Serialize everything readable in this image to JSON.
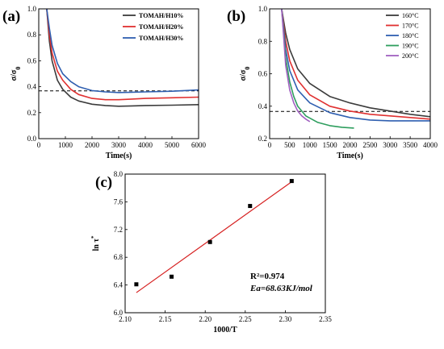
{
  "chart_data": [
    {
      "panel": "(a)",
      "type": "line",
      "xlabel": "Time(s)",
      "ylabel": "σ/σ0",
      "xlim": [
        0,
        6000
      ],
      "ylim": [
        0.0,
        1.0
      ],
      "xticks": [
        "0",
        "1000",
        "2000",
        "3000",
        "4000",
        "5000",
        "6000"
      ],
      "yticks": [
        "0.0",
        "0.2",
        "0.4",
        "0.6",
        "0.8",
        "1.0"
      ],
      "legend_position": "top-right",
      "reference_line": {
        "y": 0.368,
        "style": "dashed",
        "color": "#000000"
      },
      "series": [
        {
          "name": "TOMAH/H10%",
          "color": "#3b3b3b",
          "x": [
            300,
            400,
            500,
            700,
            900,
            1200,
            1500,
            2000,
            2500,
            3000,
            3500,
            4000,
            5000,
            6000
          ],
          "y": [
            1.0,
            0.75,
            0.6,
            0.45,
            0.38,
            0.32,
            0.29,
            0.265,
            0.255,
            0.25,
            0.252,
            0.255,
            0.258,
            0.262
          ]
        },
        {
          "name": "TOMAH/H20%",
          "color": "#e03030",
          "x": [
            300,
            400,
            500,
            700,
            900,
            1200,
            1500,
            2000,
            2500,
            3000,
            3500,
            4000,
            5000,
            6000
          ],
          "y": [
            1.0,
            0.8,
            0.66,
            0.52,
            0.45,
            0.38,
            0.34,
            0.31,
            0.3,
            0.3,
            0.305,
            0.31,
            0.315,
            0.32
          ]
        },
        {
          "name": "TOMAH/H30%",
          "color": "#2f5fb0",
          "x": [
            300,
            400,
            500,
            700,
            900,
            1200,
            1500,
            2000,
            2500,
            3000,
            3500,
            4000,
            5000,
            6000
          ],
          "y": [
            1.0,
            0.85,
            0.72,
            0.58,
            0.5,
            0.44,
            0.4,
            0.37,
            0.36,
            0.355,
            0.358,
            0.36,
            0.365,
            0.375
          ]
        }
      ]
    },
    {
      "panel": "(b)",
      "type": "line",
      "xlabel": "Time(s)",
      "ylabel": "σ/σ0",
      "xlim": [
        0,
        4000
      ],
      "ylim": [
        0.2,
        1.0
      ],
      "xticks": [
        "0",
        "500",
        "1000",
        "1500",
        "2000",
        "2500",
        "3000",
        "3500",
        "4000"
      ],
      "yticks": [
        "0.2",
        "0.4",
        "0.6",
        "0.8",
        "1.0"
      ],
      "legend_position": "top-right",
      "reference_line": {
        "y": 0.368,
        "style": "dashed",
        "color": "#000000"
      },
      "series": [
        {
          "name": "160°C",
          "color": "#3b3b3b",
          "x": [
            300,
            400,
            500,
            700,
            1000,
            1500,
            2000,
            2500,
            3000,
            3500,
            4000
          ],
          "y": [
            1.0,
            0.85,
            0.75,
            0.63,
            0.54,
            0.46,
            0.42,
            0.39,
            0.37,
            0.35,
            0.335
          ]
        },
        {
          "name": "170°C",
          "color": "#e03030",
          "x": [
            300,
            400,
            500,
            700,
            1000,
            1500,
            2000,
            2500,
            3000,
            3500,
            4000
          ],
          "y": [
            1.0,
            0.8,
            0.68,
            0.56,
            0.47,
            0.4,
            0.37,
            0.35,
            0.34,
            0.33,
            0.32
          ]
        },
        {
          "name": "180°C",
          "color": "#2f5fb0",
          "x": [
            300,
            400,
            500,
            700,
            1000,
            1500,
            2000,
            2500,
            3000,
            3500,
            4000
          ],
          "y": [
            1.0,
            0.75,
            0.62,
            0.5,
            0.42,
            0.36,
            0.33,
            0.315,
            0.31,
            0.31,
            0.31
          ]
        },
        {
          "name": "190°C",
          "color": "#2e9e5e",
          "x": [
            300,
            400,
            500,
            600,
            700,
            900,
            1200,
            1500,
            1800,
            2100
          ],
          "y": [
            1.0,
            0.7,
            0.55,
            0.46,
            0.4,
            0.34,
            0.3,
            0.28,
            0.27,
            0.265
          ]
        },
        {
          "name": "200°C",
          "color": "#a060c0",
          "x": [
            300,
            400,
            500,
            600,
            700,
            800,
            900,
            1000
          ],
          "y": [
            1.0,
            0.65,
            0.5,
            0.42,
            0.37,
            0.34,
            0.32,
            0.305
          ]
        }
      ]
    },
    {
      "panel": "(c)",
      "type": "scatter",
      "xlabel": "1000/T",
      "ylabel": "ln τ*",
      "xlim": [
        2.1,
        2.35
      ],
      "ylim": [
        6.0,
        8.0
      ],
      "xticks": [
        "2.10",
        "2.15",
        "2.20",
        "2.25",
        "2.30",
        "2.35"
      ],
      "yticks": [
        "6.0",
        "6.4",
        "6.8",
        "7.2",
        "7.6",
        "8.0"
      ],
      "points": {
        "x": [
          2.114,
          2.158,
          2.206,
          2.256,
          2.308
        ],
        "y": [
          6.41,
          6.52,
          7.02,
          7.54,
          7.9
        ]
      },
      "fit_line": {
        "x": [
          2.114,
          2.308
        ],
        "y": [
          6.29,
          7.89
        ],
        "color": "#d62020"
      },
      "annotations": [
        "R²=0.974",
        "Ea=68.63KJ/mol"
      ]
    }
  ]
}
